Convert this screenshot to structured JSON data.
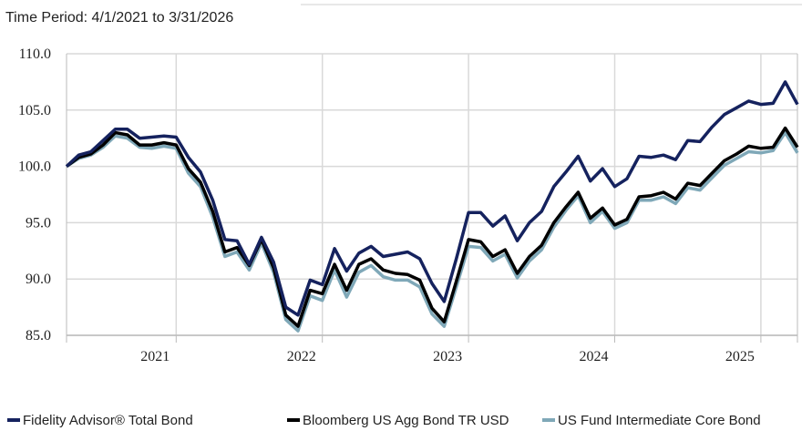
{
  "chart_data": {
    "type": "line",
    "title": "Time Period: 4/1/2021 to 3/31/2026",
    "x": [
      0,
      1,
      2,
      3,
      4,
      5,
      6,
      7,
      8,
      9,
      10,
      11,
      12,
      13,
      14,
      15,
      16,
      17,
      18,
      19,
      20,
      21,
      22,
      23,
      24,
      25,
      26,
      27,
      28,
      29,
      30,
      31,
      32,
      33,
      34,
      35,
      36,
      37,
      38,
      39,
      40,
      41,
      42,
      43,
      44,
      45,
      46,
      47,
      48,
      49,
      50,
      51,
      52,
      53,
      54,
      55,
      56,
      57,
      58,
      59,
      60
    ],
    "xlim": [
      0,
      60
    ],
    "xticks": [
      {
        "value": 9,
        "label": "2021"
      },
      {
        "value": 21,
        "label": "2022"
      },
      {
        "value": 33,
        "label": "2023"
      },
      {
        "value": 45,
        "label": "2024"
      },
      {
        "value": 57,
        "label": "2025"
      }
    ],
    "ylim": [
      85,
      110
    ],
    "yticks": [
      {
        "value": 85,
        "label": "85.0"
      },
      {
        "value": 90,
        "label": "90.0"
      },
      {
        "value": 95,
        "label": "95.0"
      },
      {
        "value": 100,
        "label": "100.0"
      },
      {
        "value": 105,
        "label": "105.0"
      },
      {
        "value": 110,
        "label": "110.0"
      }
    ],
    "grid": true,
    "legend": "bottom",
    "series": [
      {
        "name": "Fidelity Advisor® Total Bond",
        "color": "#15225e",
        "values": [
          100,
          101,
          101.3,
          102.3,
          103.3,
          103.3,
          102.5,
          102.6,
          102.7,
          102.6,
          100.8,
          99.5,
          97,
          93.5,
          93.4,
          91.3,
          93.7,
          91.5,
          87.5,
          86.8,
          89.9,
          89.5,
          92.7,
          90.7,
          92.3,
          92.9,
          92,
          92.2,
          92.4,
          91.8,
          89.6,
          88,
          91.8,
          95.9,
          95.9,
          94.7,
          95.6,
          93.4,
          95,
          96,
          98.2,
          99.5,
          100.9,
          98.7,
          99.8,
          98.2,
          98.9,
          100.9,
          100.8,
          101,
          100.6,
          102.3,
          102.2,
          103.5,
          104.6,
          105.2,
          105.8,
          105.5,
          105.6,
          107.5,
          105.5
        ]
      },
      {
        "name": "Bloomberg US Agg Bond TR USD",
        "color": "#000000",
        "values": [
          100,
          100.8,
          101.1,
          101.9,
          103,
          102.8,
          101.9,
          101.9,
          102.1,
          101.9,
          99.8,
          98.6,
          96,
          92.4,
          92.8,
          91.2,
          93.5,
          91,
          86.8,
          85.8,
          89,
          88.7,
          91.3,
          89,
          91.3,
          91.8,
          90.8,
          90.5,
          90.4,
          89.9,
          87.4,
          86.2,
          89.8,
          93.5,
          93.3,
          92,
          92.6,
          90.5,
          92,
          93,
          95,
          96.4,
          97.7,
          95.4,
          96.3,
          94.8,
          95.3,
          97.3,
          97.4,
          97.7,
          97.1,
          98.5,
          98.3,
          99.4,
          100.5,
          101.1,
          101.8,
          101.6,
          101.7,
          103.4,
          101.7
        ]
      },
      {
        "name": "US Fund Intermediate Core Bond",
        "color": "#7fa8b8",
        "values": [
          100,
          100.7,
          101,
          101.7,
          102.7,
          102.5,
          101.7,
          101.6,
          101.8,
          101.6,
          99.4,
          98.2,
          95.5,
          92,
          92.4,
          90.8,
          93.2,
          90.6,
          86.4,
          85.4,
          88.5,
          88.1,
          90.8,
          88.4,
          90.6,
          91.2,
          90.2,
          89.9,
          89.9,
          89.3,
          86.9,
          85.8,
          89.3,
          92.9,
          92.8,
          91.6,
          92.2,
          90.1,
          91.6,
          92.6,
          94.6,
          96.1,
          97.4,
          95,
          96,
          94.5,
          95,
          97,
          97,
          97.3,
          96.7,
          98.1,
          97.9,
          99,
          100.1,
          100.7,
          101.3,
          101.2,
          101.4,
          103,
          101.2
        ]
      }
    ]
  }
}
